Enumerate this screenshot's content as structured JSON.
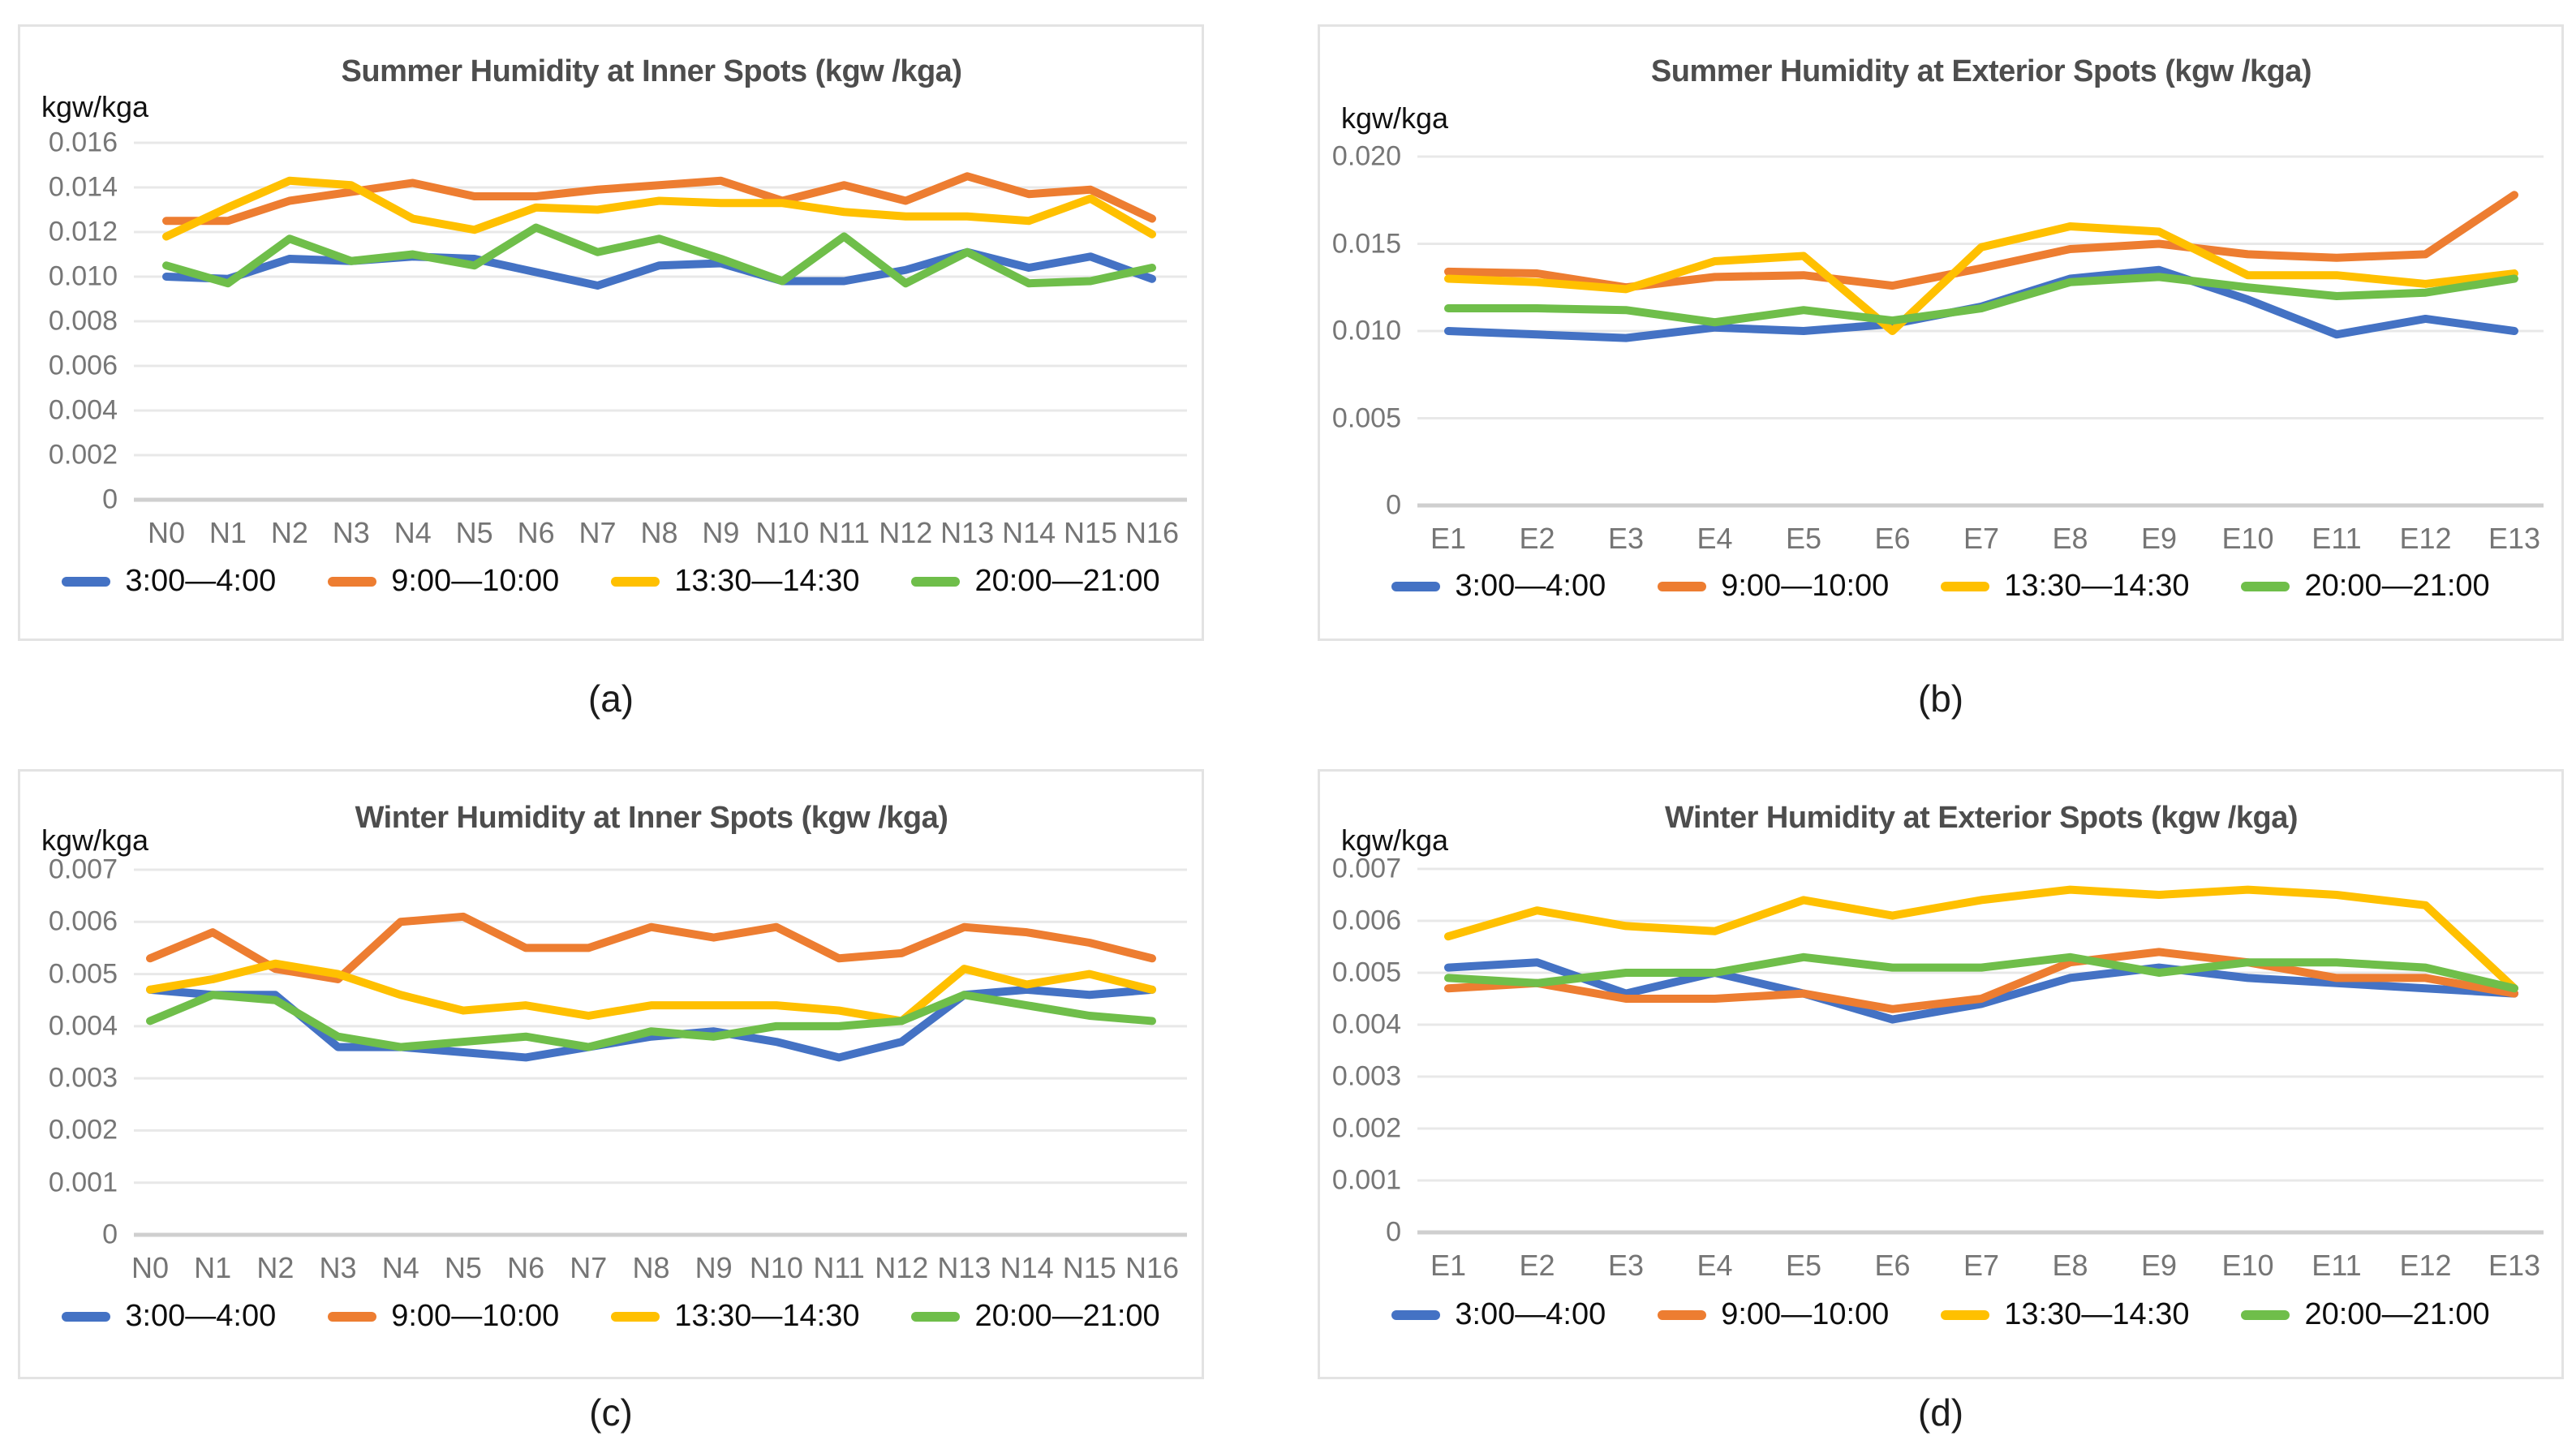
{
  "page": {
    "background": "#ffffff"
  },
  "series_meta": [
    {
      "name": "3:00—4:00",
      "color": "#4472C4"
    },
    {
      "name": "9:00—10:00",
      "color": "#ED7D31"
    },
    {
      "name": "13:30—14:30",
      "color": "#FFC000"
    },
    {
      "name": "20:00—21:00",
      "color": "#6FBE4A"
    }
  ],
  "chart_data": [
    {
      "type": "line",
      "title": "Summer Humidity at Inner Spots (kgw /kga)",
      "unit_label": "kgw/kga",
      "sublabel": "(a)",
      "grid": true,
      "legend_position": "bottom",
      "categories": [
        "N0",
        "N1",
        "N2",
        "N3",
        "N4",
        "N5",
        "N6",
        "N7",
        "N8",
        "N9",
        "N10",
        "N11",
        "N12",
        "N13",
        "N14",
        "N15",
        "N16"
      ],
      "ylim": [
        0,
        0.016
      ],
      "ytick_labels": [
        "0.016",
        "0.014",
        "0.012",
        "0.010",
        "0.008",
        "0.006",
        "0.004",
        "0.002",
        "0"
      ],
      "series": [
        {
          "name": "3:00—4:00",
          "color": "#4472C4",
          "values": [
            0.01,
            0.0099,
            0.0108,
            0.0107,
            0.0109,
            0.0108,
            0.0102,
            0.0096,
            0.0105,
            0.0106,
            0.0098,
            0.0098,
            0.0103,
            0.0111,
            0.0104,
            0.0109,
            0.0099
          ]
        },
        {
          "name": "9:00—10:00",
          "color": "#ED7D31",
          "values": [
            0.0125,
            0.0125,
            0.0134,
            0.0138,
            0.0142,
            0.0136,
            0.0136,
            0.0139,
            0.0141,
            0.0143,
            0.0134,
            0.0141,
            0.0134,
            0.0145,
            0.0137,
            0.0139,
            0.0126
          ]
        },
        {
          "name": "13:30—14:30",
          "color": "#FFC000",
          "values": [
            0.0118,
            0.0131,
            0.0143,
            0.0141,
            0.0126,
            0.0121,
            0.0131,
            0.013,
            0.0134,
            0.0133,
            0.0133,
            0.0129,
            0.0127,
            0.0127,
            0.0125,
            0.0135,
            0.0119
          ]
        },
        {
          "name": "20:00—21:00",
          "color": "#6FBE4A",
          "values": [
            0.0105,
            0.0097,
            0.0117,
            0.0107,
            0.011,
            0.0105,
            0.0122,
            0.0111,
            0.0117,
            0.0108,
            0.0098,
            0.0118,
            0.0097,
            0.0111,
            0.0097,
            0.0098,
            0.0104
          ]
        }
      ]
    },
    {
      "type": "line",
      "title": "Summer Humidity at Exterior Spots (kgw /kga)",
      "unit_label": "kgw/kga",
      "sublabel": "(b)",
      "grid": true,
      "legend_position": "bottom",
      "categories": [
        "E1",
        "E2",
        "E3",
        "E4",
        "E5",
        "E6",
        "E7",
        "E8",
        "E9",
        "E10",
        "E11",
        "E12",
        "E13"
      ],
      "ylim": [
        0,
        0.02
      ],
      "ytick_labels": [
        "0.020",
        "0.015",
        "0.010",
        "0.005",
        "0"
      ],
      "series": [
        {
          "name": "3:00—4:00",
          "color": "#4472C4",
          "values": [
            0.01,
            0.0098,
            0.0096,
            0.0102,
            0.01,
            0.0104,
            0.0114,
            0.013,
            0.0135,
            0.0118,
            0.0098,
            0.0107,
            0.01
          ]
        },
        {
          "name": "9:00—10:00",
          "color": "#ED7D31",
          "values": [
            0.0134,
            0.0133,
            0.0125,
            0.0131,
            0.0132,
            0.0126,
            0.0136,
            0.0147,
            0.015,
            0.0144,
            0.0142,
            0.0144,
            0.0178
          ]
        },
        {
          "name": "13:30—14:30",
          "color": "#FFC000",
          "values": [
            0.013,
            0.0128,
            0.0124,
            0.014,
            0.0143,
            0.01,
            0.0148,
            0.016,
            0.0157,
            0.0132,
            0.0132,
            0.0127,
            0.0133
          ]
        },
        {
          "name": "20:00—21:00",
          "color": "#6FBE4A",
          "values": [
            0.0113,
            0.0113,
            0.0112,
            0.0105,
            0.0112,
            0.0106,
            0.0113,
            0.0128,
            0.0131,
            0.0125,
            0.012,
            0.0122,
            0.013
          ]
        }
      ]
    },
    {
      "type": "line",
      "title": "Winter Humidity at Inner Spots (kgw /kga)",
      "unit_label": "kgw/kga",
      "sublabel": "(c)",
      "grid": true,
      "legend_position": "bottom",
      "categories": [
        "N0",
        "N1",
        "N2",
        "N3",
        "N4",
        "N5",
        "N6",
        "N7",
        "N8",
        "N9",
        "N10",
        "N11",
        "N12",
        "N13",
        "N14",
        "N15",
        "N16"
      ],
      "ylim": [
        0,
        0.007
      ],
      "ytick_labels": [
        "0.007",
        "0.006",
        "0.005",
        "0.004",
        "0.003",
        "0.002",
        "0.001",
        "0"
      ],
      "series": [
        {
          "name": "3:00—4:00",
          "color": "#4472C4",
          "values": [
            0.0047,
            0.0046,
            0.0046,
            0.0036,
            0.0036,
            0.0035,
            0.0034,
            0.0036,
            0.0038,
            0.0039,
            0.0037,
            0.0034,
            0.0037,
            0.0046,
            0.0047,
            0.0046,
            0.0047
          ]
        },
        {
          "name": "9:00—10:00",
          "color": "#ED7D31",
          "values": [
            0.0053,
            0.0058,
            0.0051,
            0.0049,
            0.006,
            0.0061,
            0.0055,
            0.0055,
            0.0059,
            0.0057,
            0.0059,
            0.0053,
            0.0054,
            0.0059,
            0.0058,
            0.0056,
            0.0053
          ]
        },
        {
          "name": "13:30—14:30",
          "color": "#FFC000",
          "values": [
            0.0047,
            0.0049,
            0.0052,
            0.005,
            0.0046,
            0.0043,
            0.0044,
            0.0042,
            0.0044,
            0.0044,
            0.0044,
            0.0043,
            0.0041,
            0.0051,
            0.0048,
            0.005,
            0.0047
          ]
        },
        {
          "name": "20:00—21:00",
          "color": "#6FBE4A",
          "values": [
            0.0041,
            0.0046,
            0.0045,
            0.0038,
            0.0036,
            0.0037,
            0.0038,
            0.0036,
            0.0039,
            0.0038,
            0.004,
            0.004,
            0.0041,
            0.0046,
            0.0044,
            0.0042,
            0.0041
          ]
        }
      ]
    },
    {
      "type": "line",
      "title": "Winter Humidity at Exterior Spots (kgw /kga)",
      "unit_label": "kgw/kga",
      "sublabel": "(d)",
      "grid": true,
      "legend_position": "bottom",
      "categories": [
        "E1",
        "E2",
        "E3",
        "E4",
        "E5",
        "E6",
        "E7",
        "E8",
        "E9",
        "E10",
        "E11",
        "E12",
        "E13"
      ],
      "ylim": [
        0,
        0.007
      ],
      "ytick_labels": [
        "0.007",
        "0.006",
        "0.005",
        "0.004",
        "0.003",
        "0.002",
        "0.001",
        "0"
      ],
      "series": [
        {
          "name": "3:00—4:00",
          "color": "#4472C4",
          "values": [
            0.0051,
            0.0052,
            0.0046,
            0.005,
            0.0046,
            0.0041,
            0.0044,
            0.0049,
            0.0051,
            0.0049,
            0.0048,
            0.0047,
            0.0046
          ]
        },
        {
          "name": "9:00—10:00",
          "color": "#ED7D31",
          "values": [
            0.0047,
            0.0048,
            0.0045,
            0.0045,
            0.0046,
            0.0043,
            0.0045,
            0.0052,
            0.0054,
            0.0052,
            0.0049,
            0.0049,
            0.0046
          ]
        },
        {
          "name": "13:30—14:30",
          "color": "#FFC000",
          "values": [
            0.0057,
            0.0062,
            0.0059,
            0.0058,
            0.0064,
            0.0061,
            0.0064,
            0.0066,
            0.0065,
            0.0066,
            0.0065,
            0.0063,
            0.0047
          ]
        },
        {
          "name": "20:00—21:00",
          "color": "#6FBE4A",
          "values": [
            0.0049,
            0.0048,
            0.005,
            0.005,
            0.0053,
            0.0051,
            0.0051,
            0.0053,
            0.005,
            0.0052,
            0.0052,
            0.0051,
            0.0047
          ]
        }
      ]
    }
  ]
}
